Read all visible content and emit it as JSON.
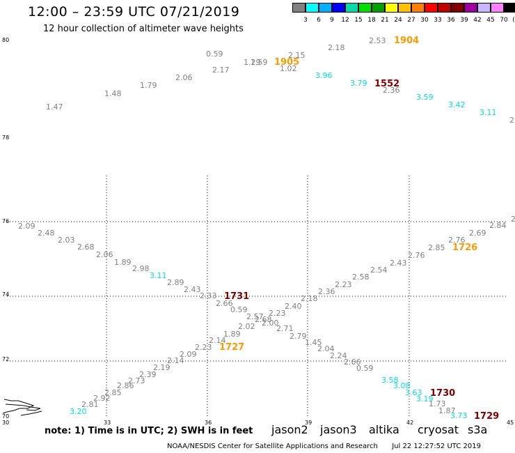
{
  "header": {
    "title": "12:00 – 23:59 UTC 07/21/2019",
    "subtitle": "12 hour collection of altimeter wave heights"
  },
  "legend": {
    "colors": [
      "#808080",
      "#00ffff",
      "#00b0ff",
      "#0000ff",
      "#00ddaa",
      "#00dd00",
      "#00a000",
      "#ffff00",
      "#ffc000",
      "#ff8000",
      "#ff0000",
      "#c00000",
      "#800000",
      "#a000a0",
      "#c8b4ff",
      "#ff80ff",
      "#000000"
    ],
    "labels": [
      "3",
      "6",
      "9",
      "12",
      "15",
      "18",
      "21",
      "24",
      "27",
      "30",
      "33",
      "36",
      "39",
      "42",
      "45",
      "70",
      "(ft)"
    ]
  },
  "map": {
    "lat_labels": [
      "80",
      "78",
      "76",
      "74",
      "72",
      "70"
    ],
    "lon_labels": [
      "30",
      "33",
      "36",
      "39",
      "42",
      "45"
    ],
    "gray": "#808080",
    "cyan": "#00dddd",
    "orange": "#ff9900",
    "maroon": "#800000"
  },
  "observations": [
    {
      "v": "1.47",
      "c": "gray"
    },
    {
      "v": "1.48",
      "c": "gray"
    },
    {
      "v": "1.79",
      "c": "gray"
    },
    {
      "v": "2.06",
      "c": "gray"
    },
    {
      "v": "2.17",
      "c": "gray"
    },
    {
      "v": "0.59",
      "c": "gray"
    },
    {
      "v": "1.29",
      "c": "gray"
    },
    {
      "v": "1.59",
      "c": "gray"
    },
    {
      "v": "1905",
      "c": "orange"
    },
    {
      "v": "2.15",
      "c": "gray"
    },
    {
      "v": "1.02",
      "c": "gray"
    },
    {
      "v": "2.18",
      "c": "gray"
    },
    {
      "v": "2.53",
      "c": "gray"
    },
    {
      "v": "1904",
      "c": "orange"
    },
    {
      "v": "3.96",
      "c": "cyan"
    },
    {
      "v": "3.79",
      "c": "cyan"
    },
    {
      "v": "1552",
      "c": "maroon"
    },
    {
      "v": "2.36",
      "c": "gray"
    },
    {
      "v": "3.59",
      "c": "cyan"
    },
    {
      "v": "3.42",
      "c": "cyan"
    },
    {
      "v": "3.11",
      "c": "cyan"
    },
    {
      "v": "2",
      "c": "gray"
    },
    {
      "v": "2.09",
      "c": "gray"
    },
    {
      "v": "2.48",
      "c": "gray"
    },
    {
      "v": "2.03",
      "c": "gray"
    },
    {
      "v": "2.68",
      "c": "gray"
    },
    {
      "v": "2.06",
      "c": "gray"
    },
    {
      "v": "1.89",
      "c": "gray"
    },
    {
      "v": "2.98",
      "c": "gray"
    },
    {
      "v": "3.11",
      "c": "cyan"
    },
    {
      "v": "2.89",
      "c": "gray"
    },
    {
      "v": "2.43",
      "c": "gray"
    },
    {
      "v": "2.33",
      "c": "gray"
    },
    {
      "v": "1731",
      "c": "maroon"
    },
    {
      "v": "2.66",
      "c": "gray"
    },
    {
      "v": "0.59",
      "c": "gray"
    },
    {
      "v": "2.57",
      "c": "gray"
    },
    {
      "v": "2.68",
      "c": "gray"
    },
    {
      "v": "2.00",
      "c": "gray"
    },
    {
      "v": "2.71",
      "c": "gray"
    },
    {
      "v": "2.79",
      "c": "gray"
    },
    {
      "v": "1.45",
      "c": "gray"
    },
    {
      "v": "2.04",
      "c": "gray"
    },
    {
      "v": "2.24",
      "c": "gray"
    },
    {
      "v": "2.66",
      "c": "gray"
    },
    {
      "v": "0.59",
      "c": "gray"
    },
    {
      "v": "3.58",
      "c": "cyan"
    },
    {
      "v": "3.08",
      "c": "cyan"
    },
    {
      "v": "3.63",
      "c": "cyan"
    },
    {
      "v": "1730",
      "c": "maroon"
    },
    {
      "v": "3.19",
      "c": "cyan"
    },
    {
      "v": "1.73",
      "c": "gray"
    },
    {
      "v": "1.87",
      "c": "gray"
    },
    {
      "v": "3.73",
      "c": "cyan"
    },
    {
      "v": "1729",
      "c": "maroon"
    },
    {
      "v": "3.20",
      "c": "cyan"
    },
    {
      "v": "2.81",
      "c": "gray"
    },
    {
      "v": "2.92",
      "c": "gray"
    },
    {
      "v": "2.85",
      "c": "gray"
    },
    {
      "v": "2.86",
      "c": "gray"
    },
    {
      "v": "2.73",
      "c": "gray"
    },
    {
      "v": "2.39",
      "c": "gray"
    },
    {
      "v": "2.19",
      "c": "gray"
    },
    {
      "v": "2.14",
      "c": "gray"
    },
    {
      "v": "2.09",
      "c": "gray"
    },
    {
      "v": "2.23",
      "c": "gray"
    },
    {
      "v": "1727",
      "c": "orange"
    },
    {
      "v": "2.14",
      "c": "gray"
    },
    {
      "v": "1.89",
      "c": "gray"
    },
    {
      "v": "2.02",
      "c": "gray"
    },
    {
      "v": "2.23",
      "c": "gray"
    },
    {
      "v": "2.40",
      "c": "gray"
    },
    {
      "v": "2.18",
      "c": "gray"
    },
    {
      "v": "2.36",
      "c": "gray"
    },
    {
      "v": "2.23",
      "c": "gray"
    },
    {
      "v": "2.58",
      "c": "gray"
    },
    {
      "v": "2.54",
      "c": "gray"
    },
    {
      "v": "2.43",
      "c": "gray"
    },
    {
      "v": "2.76",
      "c": "gray"
    },
    {
      "v": "2.85",
      "c": "gray"
    },
    {
      "v": "1726",
      "c": "orange"
    },
    {
      "v": "2.76",
      "c": "gray"
    },
    {
      "v": "2.69",
      "c": "gray"
    },
    {
      "v": "2.84",
      "c": "gray"
    },
    {
      "v": "2",
      "c": "gray"
    }
  ],
  "footer": {
    "note": "note: 1) Time is in UTC; 2) SWH is in feet",
    "credit": "NOAA/NESDIS Center for Satellite Applications and Research",
    "timestamp": "Jul 22 12:27:52 UTC 2019"
  },
  "satellites": [
    {
      "name": "jason2",
      "color": "#0000cc"
    },
    {
      "name": "jason3",
      "color": "#008800"
    },
    {
      "name": "altika",
      "color": "#ff9900"
    },
    {
      "name": "cryosat",
      "color": "#dd0000"
    },
    {
      "name": "s3a",
      "color": "#800000"
    }
  ]
}
